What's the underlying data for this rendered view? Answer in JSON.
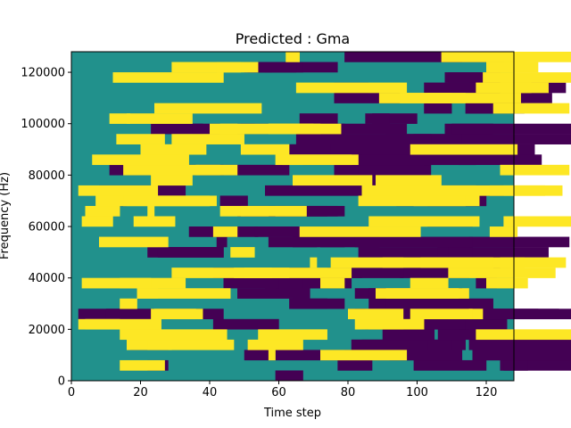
{
  "chart_data": {
    "type": "heatmap",
    "title": "Predicted : Gma",
    "xlabel": "Time step",
    "ylabel": "Frequency (Hz)",
    "xlim": [
      0,
      128
    ],
    "ylim": [
      0,
      128000
    ],
    "x_ticks": [
      0,
      20,
      40,
      60,
      80,
      100,
      120
    ],
    "y_ticks": [
      0,
      20000,
      40000,
      60000,
      80000,
      100000,
      120000
    ],
    "y_tick_labels": [
      "0",
      "20000",
      "40000",
      "60000",
      "80000",
      "100000",
      "120000"
    ],
    "n_time_steps": 128,
    "n_freq_bins": 32,
    "value_levels": [
      0,
      1,
      2
    ],
    "colormap": {
      "0": "#440154",
      "1": "#21918c",
      "2": "#fde725"
    },
    "background_value": 1,
    "cells_low": [
      [
        59,
        0,
        8,
        1
      ],
      [
        22,
        1,
        6,
        1
      ],
      [
        124,
        1,
        34,
        1
      ],
      [
        125,
        1,
        7,
        1
      ],
      [
        99,
        1,
        21,
        1
      ],
      [
        77,
        1,
        10,
        1
      ],
      [
        120,
        2,
        81,
        1
      ],
      [
        92,
        2,
        18,
        1
      ],
      [
        50,
        2,
        31,
        1
      ],
      [
        79,
        2,
        34,
        1
      ],
      [
        116,
        2,
        41,
        1
      ],
      [
        115,
        3,
        34,
        1
      ],
      [
        17,
        3,
        11,
        1
      ],
      [
        81,
        3,
        33,
        1
      ],
      [
        84,
        3,
        26,
        1
      ],
      [
        81,
        3,
        22,
        1
      ],
      [
        90,
        4,
        15,
        1
      ],
      [
        106,
        4,
        21,
        1
      ],
      [
        96,
        5,
        19,
        1
      ],
      [
        84,
        5,
        18,
        1
      ],
      [
        91,
        5,
        35,
        1
      ],
      [
        85,
        5,
        16,
        1
      ],
      [
        41,
        5,
        19,
        1
      ],
      [
        112,
        5,
        2,
        1
      ],
      [
        2,
        6,
        13,
        1
      ],
      [
        116,
        6,
        35,
        1
      ],
      [
        115,
        6,
        20,
        1
      ],
      [
        82,
        6,
        3,
        1
      ],
      [
        10,
        6,
        34,
        1
      ],
      [
        80,
        6,
        29,
        1
      ],
      [
        112,
        6,
        12,
        1
      ],
      [
        112,
        6,
        29,
        1
      ],
      [
        63,
        7,
        11,
        1
      ],
      [
        64,
        7,
        4,
        1
      ],
      [
        86,
        7,
        27,
        1
      ],
      [
        104,
        7,
        7,
        1
      ],
      [
        91,
        7,
        31,
        1
      ],
      [
        64,
        7,
        15,
        1
      ],
      [
        48,
        8,
        21,
        1
      ],
      [
        82,
        8,
        11,
        1
      ],
      [
        86,
        8,
        27,
        1
      ],
      [
        56,
        9,
        19,
        1
      ],
      [
        59,
        9,
        8,
        1
      ],
      [
        44,
        9,
        16,
        1
      ],
      [
        67,
        9,
        14,
        1
      ],
      [
        117,
        9,
        6,
        1
      ],
      [
        95,
        10,
        20,
        1
      ],
      [
        81,
        10,
        3,
        1
      ],
      [
        41,
        10,
        28,
        1
      ],
      [
        74,
        10,
        22,
        1
      ],
      [
        97,
        11,
        30,
        1
      ],
      [
        117,
        11,
        8,
        1
      ],
      [
        22,
        12,
        22,
        1
      ],
      [
        83,
        12,
        31,
        1
      ],
      [
        25,
        12,
        19,
        1
      ],
      [
        106,
        12,
        32,
        1
      ],
      [
        109,
        12,
        7,
        1
      ],
      [
        64,
        13,
        7,
        1
      ],
      [
        57,
        13,
        22,
        1
      ],
      [
        115,
        13,
        29,
        1
      ],
      [
        72,
        13,
        17,
        1
      ],
      [
        82,
        13,
        34,
        1
      ],
      [
        42,
        13,
        3,
        1
      ],
      [
        34,
        14,
        20,
        1
      ],
      [
        53,
        14,
        31,
        1
      ],
      [
        103,
        15,
        13,
        1
      ],
      [
        48,
        16,
        29,
        1
      ],
      [
        60,
        16,
        14,
        1
      ],
      [
        48,
        16,
        31,
        1
      ],
      [
        50,
        16,
        12,
        1
      ],
      [
        94,
        17,
        26,
        1
      ],
      [
        12,
        17,
        4,
        1
      ],
      [
        103,
        17,
        15,
        1
      ],
      [
        43,
        17,
        8,
        1
      ],
      [
        8,
        18,
        25,
        1
      ],
      [
        90,
        18,
        35,
        1
      ],
      [
        96,
        18,
        6,
        1
      ],
      [
        56,
        18,
        34,
        1
      ],
      [
        83,
        19,
        15,
        1
      ],
      [
        11,
        20,
        33,
        1
      ],
      [
        77,
        20,
        27,
        1
      ],
      [
        76,
        20,
        7,
        1
      ],
      [
        37,
        20,
        26,
        1
      ],
      [
        102,
        21,
        34,
        1
      ],
      [
        112,
        21,
        5,
        1
      ],
      [
        67,
        21,
        16,
        1
      ],
      [
        83,
        21,
        34,
        1
      ],
      [
        63,
        22,
        21,
        1
      ],
      [
        75,
        22,
        24,
        1
      ],
      [
        108,
        22,
        26,
        1
      ],
      [
        99,
        23,
        15,
        1
      ],
      [
        65,
        23,
        10,
        1
      ],
      [
        91,
        23,
        23,
        1
      ],
      [
        113,
        23,
        33,
        1
      ],
      [
        74,
        23,
        30,
        1
      ],
      [
        62,
        24,
        35,
        1
      ],
      [
        49,
        24,
        30,
        1
      ],
      [
        108,
        24,
        14,
        1
      ],
      [
        23,
        24,
        15,
        1
      ],
      [
        110,
        24,
        35,
        1
      ],
      [
        35,
        24,
        18,
        1
      ],
      [
        66,
        25,
        11,
        1
      ],
      [
        87,
        25,
        13,
        1
      ],
      [
        85,
        25,
        7,
        1
      ],
      [
        114,
        26,
        17,
        1
      ],
      [
        102,
        26,
        8,
        1
      ],
      [
        114,
        26,
        12,
        1
      ],
      [
        105,
        27,
        9,
        1
      ],
      [
        126,
        27,
        13,
        1
      ],
      [
        76,
        27,
        19,
        1
      ],
      [
        115,
        28,
        11,
        1
      ],
      [
        102,
        28,
        23,
        1
      ],
      [
        76,
        28,
        10,
        1
      ],
      [
        120,
        28,
        23,
        1
      ],
      [
        108,
        29,
        16,
        1
      ],
      [
        109,
        29,
        12,
        1
      ],
      [
        56,
        30,
        2,
        1
      ],
      [
        53,
        30,
        24,
        1
      ],
      [
        50,
        30,
        17,
        1
      ],
      [
        51,
        30,
        14,
        1
      ],
      [
        122,
        31,
        10,
        1
      ],
      [
        107,
        31,
        16,
        1
      ],
      [
        79,
        31,
        34,
        1
      ]
    ],
    "cells_high": [
      [
        14,
        1,
        13,
        1
      ],
      [
        72,
        2,
        25,
        1
      ],
      [
        57,
        2,
        2,
        1
      ],
      [
        16,
        3,
        13,
        1
      ],
      [
        51,
        3,
        16,
        1
      ],
      [
        22,
        3,
        25,
        1
      ],
      [
        54,
        4,
        20,
        1
      ],
      [
        14,
        4,
        31,
        1
      ],
      [
        117,
        4,
        28,
        1
      ],
      [
        4,
        5,
        22,
        1
      ],
      [
        86,
        5,
        10,
        1
      ],
      [
        82,
        5,
        20,
        1
      ],
      [
        2,
        5,
        12,
        1
      ],
      [
        23,
        6,
        13,
        1
      ],
      [
        115,
        6,
        4,
        1
      ],
      [
        80,
        6,
        16,
        1
      ],
      [
        98,
        6,
        18,
        1
      ],
      [
        24,
        6,
        14,
        1
      ],
      [
        14,
        7,
        5,
        1
      ],
      [
        19,
        8,
        6,
        1
      ],
      [
        19,
        8,
        27,
        1
      ],
      [
        91,
        8,
        24,
        1
      ],
      [
        88,
        8,
        24,
        1
      ],
      [
        72,
        9,
        7,
        1
      ],
      [
        3,
        9,
        30,
        1
      ],
      [
        14,
        9,
        9,
        1
      ],
      [
        98,
        9,
        11,
        1
      ],
      [
        120,
        9,
        12,
        1
      ],
      [
        50,
        10,
        8,
        1
      ],
      [
        47,
        10,
        34,
        1
      ],
      [
        29,
        10,
        34,
        1
      ],
      [
        109,
        10,
        31,
        1
      ],
      [
        101,
        11,
        30,
        1
      ],
      [
        90,
        11,
        32,
        1
      ],
      [
        69,
        11,
        2,
        1
      ],
      [
        124,
        11,
        19,
        1
      ],
      [
        75,
        11,
        21,
        1
      ],
      [
        46,
        12,
        7,
        1
      ],
      [
        8,
        13,
        20,
        1
      ],
      [
        66,
        14,
        35,
        1
      ],
      [
        121,
        14,
        8,
        1
      ],
      [
        41,
        14,
        7,
        1
      ],
      [
        125,
        15,
        26,
        1
      ],
      [
        86,
        15,
        32,
        1
      ],
      [
        18,
        15,
        12,
        1
      ],
      [
        3,
        15,
        9,
        1
      ],
      [
        4,
        16,
        10,
        1
      ],
      [
        59,
        16,
        9,
        1
      ],
      [
        22,
        16,
        2,
        1
      ],
      [
        43,
        16,
        25,
        1
      ],
      [
        49,
        16,
        8,
        1
      ],
      [
        23,
        17,
        17,
        1
      ],
      [
        99,
        17,
        19,
        1
      ],
      [
        7,
        17,
        33,
        1
      ],
      [
        15,
        17,
        27,
        1
      ],
      [
        83,
        17,
        31,
        1
      ],
      [
        107,
        18,
        30,
        1
      ],
      [
        84,
        18,
        33,
        1
      ],
      [
        2,
        18,
        23,
        1
      ],
      [
        121,
        18,
        21,
        1
      ],
      [
        64,
        19,
        23,
        1
      ],
      [
        88,
        19,
        19,
        1
      ],
      [
        23,
        19,
        12,
        1
      ],
      [
        36,
        20,
        7,
        1
      ],
      [
        15,
        20,
        33,
        1
      ],
      [
        124,
        20,
        20,
        1
      ],
      [
        61,
        21,
        22,
        1
      ],
      [
        6,
        21,
        28,
        1
      ],
      [
        59,
        21,
        22,
        1
      ],
      [
        20,
        22,
        19,
        1
      ],
      [
        49,
        22,
        14,
        1
      ],
      [
        98,
        22,
        31,
        1
      ],
      [
        13,
        23,
        14,
        1
      ],
      [
        29,
        23,
        21,
        1
      ],
      [
        57,
        24,
        21,
        1
      ],
      [
        57,
        24,
        15,
        1
      ],
      [
        40,
        24,
        8,
        1
      ],
      [
        43,
        24,
        27,
        1
      ],
      [
        16,
        25,
        19,
        1
      ],
      [
        11,
        25,
        6,
        1
      ],
      [
        122,
        26,
        22,
        1
      ],
      [
        24,
        26,
        31,
        1
      ],
      [
        89,
        27,
        25,
        1
      ],
      [
        95,
        27,
        15,
        1
      ],
      [
        103,
        27,
        27,
        1
      ],
      [
        117,
        28,
        16,
        1
      ],
      [
        124,
        28,
        14,
        1
      ],
      [
        65,
        28,
        32,
        1
      ],
      [
        119,
        29,
        32,
        1
      ],
      [
        12,
        29,
        32,
        1
      ],
      [
        29,
        30,
        25,
        1
      ],
      [
        42,
        30,
        7,
        1
      ],
      [
        120,
        30,
        15,
        1
      ],
      [
        125,
        31,
        33,
        1
      ],
      [
        107,
        31,
        20,
        1
      ],
      [
        62,
        31,
        4,
        1
      ]
    ]
  }
}
